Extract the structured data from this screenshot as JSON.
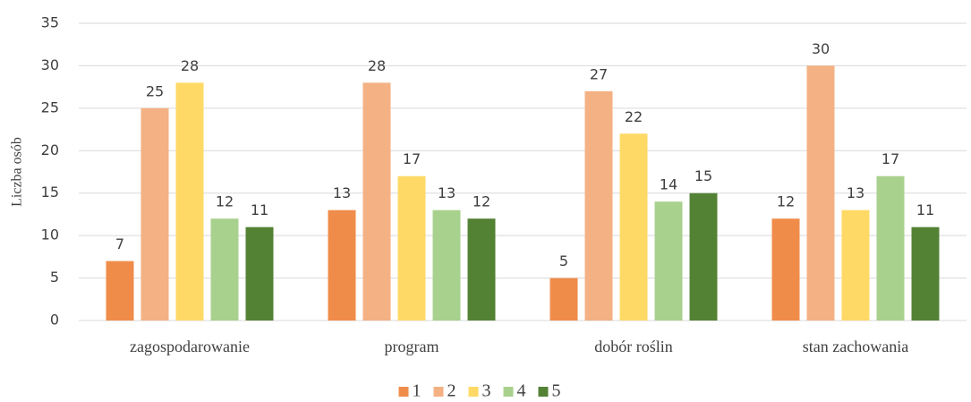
{
  "chart_data": {
    "type": "bar",
    "ylabel": "Liczba osób",
    "categories": [
      "zagospodarowanie",
      "program",
      "dobór roślin",
      "stan zachowania"
    ],
    "series": [
      {
        "name": "1",
        "color": "#f08c4a",
        "values": [
          7,
          13,
          5,
          12
        ]
      },
      {
        "name": "2",
        "color": "#f4b183",
        "values": [
          25,
          28,
          27,
          30
        ]
      },
      {
        "name": "3",
        "color": "#ffd966",
        "values": [
          28,
          17,
          22,
          13
        ]
      },
      {
        "name": "4",
        "color": "#a9d18e",
        "values": [
          12,
          13,
          14,
          17
        ]
      },
      {
        "name": "5",
        "color": "#548235",
        "values": [
          11,
          12,
          15,
          11
        ]
      }
    ],
    "ylim": [
      0,
      35
    ],
    "yticks": [
      0,
      5,
      10,
      15,
      20,
      25,
      30,
      35
    ],
    "grid": true,
    "legend": "bottom"
  }
}
